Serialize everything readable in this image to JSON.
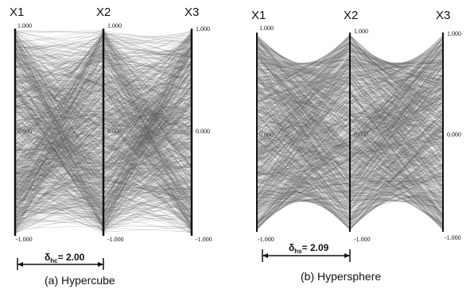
{
  "panels": [
    {
      "id": "a",
      "caption": "(a) Hypercube",
      "axes": [
        {
          "name": "X1",
          "max_label": "1.000",
          "mid_label": "0.000",
          "min_label": "-1.000"
        },
        {
          "name": "X2",
          "max_label": "1.000",
          "mid_label": "0.000",
          "min_label": "-1.000"
        },
        {
          "name": "X3",
          "max_label": "1.000",
          "mid_label": "0.000",
          "min_label": "-1.000"
        }
      ],
      "delta_symbol": "δ",
      "delta_subscript": "hc",
      "delta_text": "= 2.00",
      "line_color": "#555555",
      "shape": "cube"
    },
    {
      "id": "b",
      "caption": "(b) Hypersphere",
      "axes": [
        {
          "name": "X1",
          "max_label": "1.000",
          "mid_label": "0.000",
          "min_label": "-1.000"
        },
        {
          "name": "X2",
          "max_label": "1.000",
          "mid_label": "0.000",
          "min_label": "-1.000"
        },
        {
          "name": "X3",
          "max_label": "1.000",
          "mid_label": "0.000",
          "min_label": "-1.000"
        }
      ],
      "delta_symbol": "δ",
      "delta_subscript": "hs",
      "delta_text": "= 2.09",
      "line_color": "#555555",
      "shape": "sphere"
    }
  ]
}
